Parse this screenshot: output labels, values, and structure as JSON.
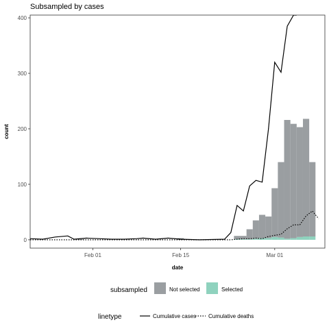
{
  "chart_data": {
    "type": "bar",
    "title": "Subsampled by cases",
    "xlabel": "date",
    "ylabel": "count",
    "x_ticks": [
      "Feb 01",
      "Feb 15",
      "Mar 01"
    ],
    "y_ticks": [
      "0",
      "100",
      "200",
      "300",
      "400"
    ],
    "xlim": [
      "2020-01-22",
      "2020-03-09"
    ],
    "ylim": [
      -15,
      405
    ],
    "grid": false,
    "legend_position": "bottom",
    "fill_legend": {
      "title": "subsampled",
      "items": [
        {
          "label": "Not selected",
          "color": "#9a9ea1"
        },
        {
          "label": "Selected",
          "color": "#8fd2be"
        }
      ]
    },
    "linetype_legend": {
      "title": "linetype",
      "items": [
        {
          "label": "Cumulative cases",
          "dash": "solid"
        },
        {
          "label": "Cumulative deaths",
          "dash": "dotted"
        }
      ]
    },
    "bars": {
      "dates": [
        "2020-01-30",
        "2020-02-15",
        "2020-02-24",
        "2020-02-25",
        "2020-02-26",
        "2020-02-27",
        "2020-02-28",
        "2020-02-29",
        "2020-03-01",
        "2020-03-02",
        "2020-03-03",
        "2020-03-04",
        "2020-03-05",
        "2020-03-06",
        "2020-03-07"
      ],
      "not_selected": [
        1,
        3,
        6,
        6,
        18,
        33,
        42,
        39,
        88,
        136,
        214,
        206,
        198,
        212,
        134
      ],
      "selected": [
        0,
        0,
        1,
        1,
        1,
        2,
        3,
        3,
        5,
        4,
        2,
        3,
        5,
        6,
        6
      ]
    },
    "line_cases": {
      "dates": [
        "2020-01-22",
        "2020-01-24",
        "2020-01-26",
        "2020-01-28",
        "2020-01-29",
        "2020-01-31",
        "2020-02-02",
        "2020-02-04",
        "2020-02-06",
        "2020-02-08",
        "2020-02-09",
        "2020-02-11",
        "2020-02-13",
        "2020-02-15",
        "2020-02-18",
        "2020-02-22",
        "2020-02-23",
        "2020-02-24",
        "2020-02-25",
        "2020-02-26",
        "2020-02-27",
        "2020-02-28",
        "2020-02-29",
        "2020-03-01",
        "2020-03-02",
        "2020-03-03",
        "2020-03-04",
        "2020-03-04T12:00"
      ],
      "values": [
        2,
        1,
        5,
        7,
        1,
        3,
        2,
        1,
        1,
        2,
        3,
        1,
        3,
        1,
        0,
        1,
        13,
        62,
        52,
        97,
        107,
        104,
        200,
        320,
        302,
        385,
        405,
        405
      ]
    },
    "line_deaths": {
      "dates": [
        "2020-01-22",
        "2020-01-30",
        "2020-02-05",
        "2020-02-15",
        "2020-02-22",
        "2020-02-23",
        "2020-02-24",
        "2020-02-25",
        "2020-02-26",
        "2020-02-27",
        "2020-02-28",
        "2020-02-29",
        "2020-03-01",
        "2020-03-02",
        "2020-03-03",
        "2020-03-04",
        "2020-03-05",
        "2020-03-06",
        "2020-03-07",
        "2020-03-08"
      ],
      "values": [
        0,
        0,
        0,
        0,
        0,
        0,
        1,
        2,
        2,
        3,
        2,
        6,
        8,
        10,
        20,
        27,
        27,
        43,
        52,
        38
      ]
    }
  }
}
